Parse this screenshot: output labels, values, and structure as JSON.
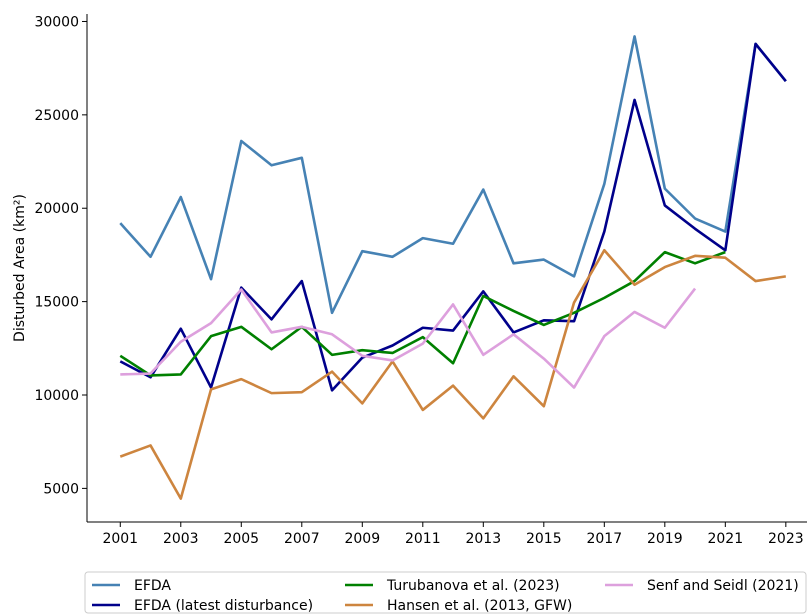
{
  "chart_data": {
    "type": "line",
    "y_label": "Disturbed Area (km²)",
    "x": [
      2001,
      2002,
      2003,
      2004,
      2005,
      2006,
      2007,
      2008,
      2009,
      2010,
      2011,
      2012,
      2013,
      2014,
      2015,
      2016,
      2017,
      2018,
      2019,
      2020,
      2021,
      2022,
      2023
    ],
    "xlim": [
      1999.9,
      2023.7
    ],
    "xticks": [
      2001,
      2003,
      2005,
      2007,
      2009,
      2011,
      2013,
      2015,
      2017,
      2019,
      2021,
      2023
    ],
    "ylim": [
      3200,
      30400
    ],
    "yticks": [
      5000,
      10000,
      15000,
      20000,
      25000,
      30000
    ],
    "grid": false,
    "legend": "lower center outside",
    "series": [
      {
        "name": "EFDA",
        "color": "#4682b4",
        "values": [
          19200,
          17400,
          20600,
          16200,
          23600,
          22300,
          22700,
          14400,
          17700,
          17400,
          18400,
          18100,
          21000,
          17050,
          17250,
          16350,
          21300,
          29200,
          21050,
          19450,
          18750,
          28800,
          26800
        ]
      },
      {
        "name": "EFDA (latest disturbance)",
        "color": "#00008b",
        "values": [
          11800,
          10950,
          13550,
          10400,
          15750,
          14050,
          16100,
          10250,
          12000,
          12650,
          13600,
          13450,
          15550,
          13350,
          14000,
          13950,
          18750,
          25800,
          20150,
          18900,
          17750,
          28800,
          26800
        ]
      },
      {
        "name": "Turubanova et al. (2023)",
        "color": "#008000",
        "values": [
          12100,
          11050,
          11100,
          13150,
          13650,
          12450,
          13650,
          12150,
          12400,
          12250,
          13100,
          11700,
          15300,
          14500,
          13750,
          14400,
          15200,
          16100,
          17650,
          17050,
          17650,
          null,
          null
        ]
      },
      {
        "name": "Hansen et al. (2013, GFW)",
        "color": "#cd853f",
        "values": [
          6700,
          7300,
          4450,
          10300,
          10850,
          10100,
          10150,
          11250,
          9550,
          11800,
          9200,
          10500,
          8750,
          11000,
          9400,
          14950,
          17750,
          15900,
          16850,
          17450,
          17350,
          16100,
          16350
        ]
      },
      {
        "name": "Senf and Seidl (2021)",
        "color": "#dda0dd",
        "values": [
          11100,
          11150,
          12850,
          13850,
          15650,
          13350,
          13650,
          13250,
          12100,
          11850,
          12750,
          14850,
          12150,
          13250,
          11950,
          10400,
          13150,
          14450,
          13600,
          15700,
          null,
          null,
          null
        ]
      }
    ]
  }
}
